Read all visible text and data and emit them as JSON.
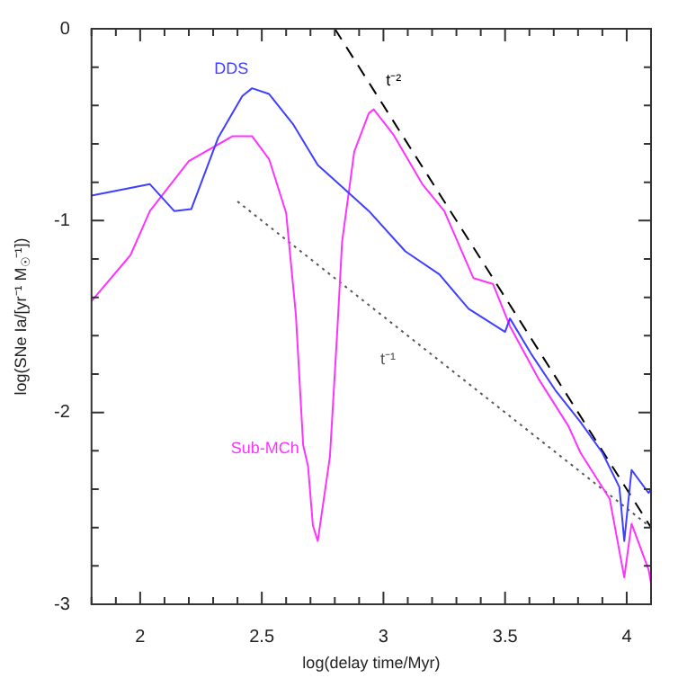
{
  "chart_data": {
    "type": "line",
    "xlabel": "log(delay time/Myr)",
    "ylabel": "log(SNe Ia/[yr⁻¹ M$_{☉}$⁻¹])",
    "xlim": [
      1.8,
      4.1
    ],
    "ylim": [
      -3,
      0
    ],
    "xticks": [
      {
        "value": 1.8,
        "label": null
      },
      {
        "value": 1.9,
        "label": null
      },
      2,
      {
        "value": 2.1,
        "label": null
      },
      {
        "value": 2.2,
        "label": null
      },
      {
        "value": 2.3,
        "label": null
      },
      {
        "value": 2.4,
        "label": null
      },
      2.5,
      {
        "value": 2.6,
        "label": null
      },
      {
        "value": 2.7,
        "label": null
      },
      {
        "value": 2.8,
        "label": null
      },
      {
        "value": 2.9,
        "label": null
      },
      3,
      {
        "value": 3.1,
        "label": null
      },
      {
        "value": 3.2,
        "label": null
      },
      {
        "value": 3.3,
        "label": null
      },
      {
        "value": 3.4,
        "label": null
      },
      3.5,
      {
        "value": 3.6,
        "label": null
      },
      {
        "value": 3.7,
        "label": null
      },
      {
        "value": 3.8,
        "label": null
      },
      {
        "value": 3.9,
        "label": null
      },
      4
    ],
    "yticks": [
      -3,
      {
        "value": -2.8,
        "label": null
      },
      {
        "value": -2.6,
        "label": null
      },
      {
        "value": -2.4,
        "label": null
      },
      {
        "value": -2.2,
        "label": null
      },
      -2,
      {
        "value": -1.8,
        "label": null
      },
      {
        "value": -1.6,
        "label": null
      },
      {
        "value": -1.4,
        "label": null
      },
      {
        "value": -1.2,
        "label": null
      },
      -1,
      {
        "value": -0.8,
        "label": null
      },
      {
        "value": -0.6,
        "label": null
      },
      {
        "value": -0.4,
        "label": null
      },
      {
        "value": -0.2,
        "label": null
      },
      0
    ],
    "grid": false,
    "legend": false,
    "series": [
      {
        "name": "DDS",
        "color": "#3f3fff",
        "line_style": "solid",
        "x": [
          1.8,
          2.04,
          2.14,
          2.21,
          2.32,
          2.42,
          2.46,
          2.53,
          2.63,
          2.73,
          2.8,
          2.94,
          3.09,
          3.23,
          3.35,
          3.5,
          3.52,
          3.61,
          3.71,
          3.81,
          3.9,
          3.97,
          3.99,
          4.02,
          4.09,
          4.1
        ],
        "values": [
          -0.87,
          -0.81,
          -0.95,
          -0.94,
          -0.57,
          -0.35,
          -0.31,
          -0.34,
          -0.5,
          -0.71,
          -0.79,
          -0.95,
          -1.16,
          -1.28,
          -1.46,
          -1.58,
          -1.51,
          -1.7,
          -1.89,
          -2.05,
          -2.21,
          -2.39,
          -2.67,
          -2.3,
          -2.42,
          -2.4
        ]
      },
      {
        "name": "Sub-MCh",
        "color": "#ff33ff",
        "line_style": "solid",
        "x": [
          1.8,
          1.96,
          2.04,
          2.2,
          2.38,
          2.46,
          2.53,
          2.6,
          2.64,
          2.67,
          2.69,
          2.71,
          2.73,
          2.78,
          2.81,
          2.83,
          2.88,
          2.94,
          2.96,
          3.04,
          3.16,
          3.25,
          3.37,
          3.45,
          3.52,
          3.64,
          3.76,
          3.81,
          3.93,
          3.99,
          4.02,
          4.09,
          4.1
        ],
        "values": [
          -1.42,
          -1.18,
          -0.95,
          -0.69,
          -0.56,
          -0.56,
          -0.68,
          -0.96,
          -1.49,
          -2.17,
          -2.28,
          -2.59,
          -2.67,
          -2.23,
          -1.58,
          -1.11,
          -0.64,
          -0.44,
          -0.42,
          -0.55,
          -0.81,
          -0.95,
          -1.3,
          -1.33,
          -1.55,
          -1.83,
          -2.07,
          -2.21,
          -2.45,
          -2.86,
          -2.58,
          -2.82,
          -2.89
        ]
      },
      {
        "name": "t⁻²",
        "color": "#000000",
        "line_style": "dashed",
        "x": [
          2.8,
          4.1
        ],
        "values": [
          0,
          -2.6
        ]
      },
      {
        "name": "t⁻¹",
        "color": "#555555",
        "line_style": "dotted",
        "x": [
          2.4,
          4.1
        ],
        "values": [
          -0.9,
          -2.6
        ]
      }
    ]
  }
}
